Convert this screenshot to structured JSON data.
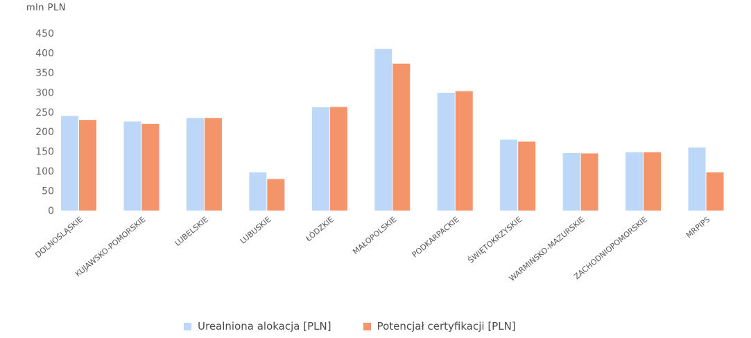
{
  "chart_data": {
    "type": "bar",
    "unit_label": "mln PLN",
    "categories": [
      "DOLNOŚLĄSKIE",
      "KUJAWSKO-POMORSKIE",
      "LUBELSKIE",
      "LUBUSKIE",
      "ŁÓDZKIE",
      "MAŁOPOLSKIE",
      "PODKARPACKIE",
      "ŚWIĘTOKRZYSKIE",
      "WARMIŃSKO-MAZURSKIE",
      "ZACHODNIOPOMORSKIE",
      "MRPIPS"
    ],
    "series": [
      {
        "name": "Urealniona alokacja [PLN]",
        "color": "#bdd7f8",
        "values": [
          240,
          226,
          235,
          97,
          262,
          410,
          299,
          180,
          146,
          148,
          160
        ]
      },
      {
        "name": "Potencjał certyfikacji [PLN]",
        "color": "#f4946a",
        "values": [
          230,
          220,
          235,
          80,
          263,
          373,
          303,
          175,
          145,
          148,
          97
        ]
      }
    ],
    "yticks": [
      0,
      50,
      100,
      150,
      200,
      250,
      300,
      350,
      400,
      450
    ],
    "ylim": [
      0,
      450
    ],
    "grid": false,
    "legend_position": "bottom"
  }
}
